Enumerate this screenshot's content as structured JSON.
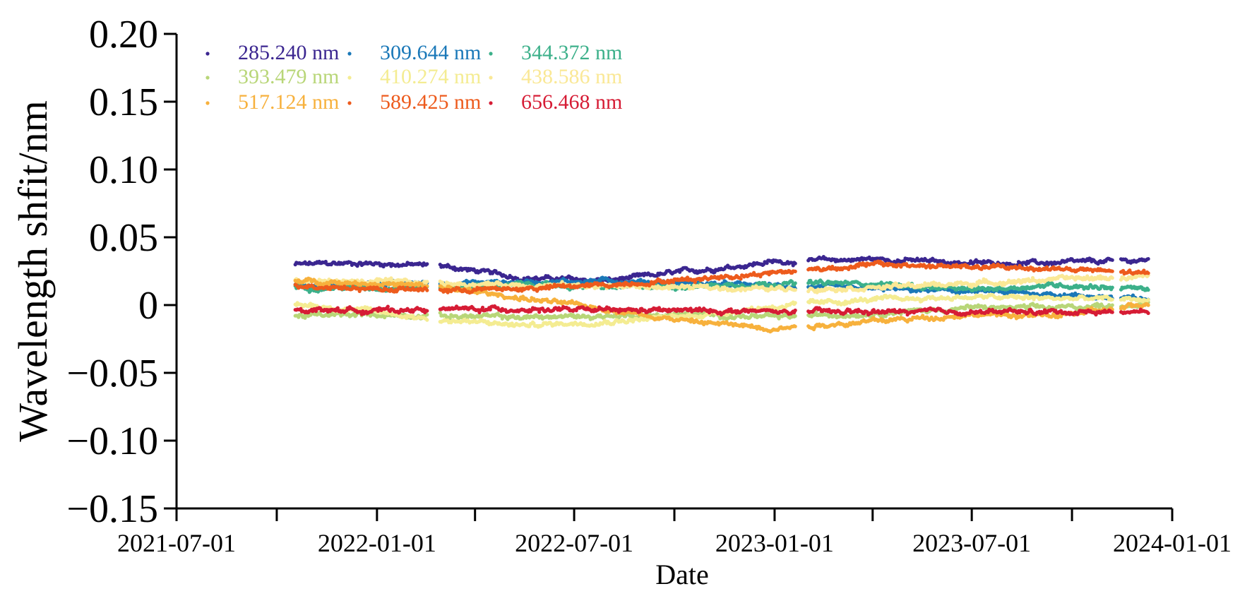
{
  "chart_data": {
    "type": "scatter",
    "xlabel": "Date",
    "ylabel": "Wavelength shfit/nm",
    "xlim": [
      "2021-07-01",
      "2024-01-01"
    ],
    "ylim": [
      -0.15,
      0.2
    ],
    "x_tick_labels": [
      "2021-07-01",
      "2022-01-01",
      "2022-07-01",
      "2023-01-01",
      "2023-07-01",
      "2024-01-01"
    ],
    "y_tick_labels": [
      "0.20",
      "0.15",
      "0.10",
      "0.05",
      "0",
      "−0.05",
      "−0.10",
      "−0.15"
    ],
    "legend_position": "top-left",
    "legend_columns": 3,
    "grid": false,
    "data_gaps": [
      [
        "2022-02-17",
        "2022-02-27"
      ],
      [
        "2023-01-21",
        "2023-01-31"
      ],
      [
        "2023-11-08",
        "2023-11-14"
      ]
    ],
    "series": [
      {
        "name": "285.240 nm",
        "color": "#3b2690",
        "x": [
          "2021-10-18",
          "2021-12-15",
          "2022-03-01",
          "2022-05-15",
          "2022-08-01",
          "2022-10-15",
          "2023-01-01",
          "2023-04-01",
          "2023-07-01",
          "2023-09-15",
          "2023-12-10"
        ],
        "y": [
          0.03,
          0.031,
          0.029,
          0.02,
          0.018,
          0.025,
          0.032,
          0.034,
          0.031,
          0.031,
          0.033
        ]
      },
      {
        "name": "309.644 nm",
        "color": "#1a78b8",
        "x": [
          "2021-10-18",
          "2022-01-01",
          "2022-03-01",
          "2022-05-15",
          "2022-08-01",
          "2022-10-15",
          "2023-01-01",
          "2023-04-01",
          "2023-07-01",
          "2023-09-15",
          "2023-12-10"
        ],
        "y": [
          0.015,
          0.016,
          0.016,
          0.017,
          0.018,
          0.016,
          0.014,
          0.012,
          0.01,
          0.008,
          0.004
        ]
      },
      {
        "name": "344.372 nm",
        "color": "#3cb08a",
        "x": [
          "2021-10-18",
          "2022-01-01",
          "2022-03-01",
          "2022-05-15",
          "2022-08-01",
          "2022-10-15",
          "2023-01-01",
          "2023-04-01",
          "2023-07-01",
          "2023-09-15",
          "2023-12-10"
        ],
        "y": [
          0.013,
          0.013,
          0.013,
          0.015,
          0.013,
          0.014,
          0.016,
          0.016,
          0.011,
          0.015,
          0.012
        ]
      },
      {
        "name": "393.479 nm",
        "color": "#b8d678",
        "x": [
          "2021-10-18",
          "2022-01-01",
          "2022-03-01",
          "2022-05-15",
          "2022-08-01",
          "2022-10-15",
          "2023-01-01",
          "2023-04-01",
          "2023-07-01",
          "2023-09-15",
          "2023-12-10"
        ],
        "y": [
          -0.008,
          -0.007,
          -0.008,
          -0.009,
          -0.008,
          -0.007,
          -0.009,
          -0.006,
          -0.002,
          -0.002,
          0.001
        ]
      },
      {
        "name": "410.274 nm",
        "color": "#f4ec92",
        "x": [
          "2021-10-18",
          "2022-01-01",
          "2022-03-01",
          "2022-05-15",
          "2022-08-01",
          "2022-10-15",
          "2023-01-01",
          "2023-04-01",
          "2023-07-01",
          "2023-09-15",
          "2023-12-10"
        ],
        "y": [
          0.001,
          -0.005,
          -0.011,
          -0.015,
          -0.012,
          -0.008,
          -0.001,
          0.004,
          0.006,
          0.005,
          0.004
        ]
      },
      {
        "name": "438.586 nm",
        "color": "#fae896",
        "x": [
          "2021-10-18",
          "2022-01-01",
          "2022-03-01",
          "2022-05-15",
          "2022-08-01",
          "2022-10-15",
          "2023-01-01",
          "2023-04-01",
          "2023-07-01",
          "2023-09-15",
          "2023-12-10"
        ],
        "y": [
          0.018,
          0.017,
          0.016,
          0.015,
          0.014,
          0.013,
          0.012,
          0.013,
          0.016,
          0.019,
          0.021
        ]
      },
      {
        "name": "517.124 nm",
        "color": "#f7b13d",
        "x": [
          "2021-10-18",
          "2022-01-01",
          "2022-03-01",
          "2022-05-15",
          "2022-08-01",
          "2022-10-15",
          "2023-01-01",
          "2023-04-01",
          "2023-07-01",
          "2023-09-15",
          "2023-12-10"
        ],
        "y": [
          0.018,
          0.016,
          0.013,
          0.005,
          -0.003,
          -0.012,
          -0.017,
          -0.012,
          -0.007,
          -0.008,
          0.0
        ]
      },
      {
        "name": "589.425 nm",
        "color": "#ed5b1d",
        "x": [
          "2021-10-18",
          "2022-01-01",
          "2022-03-01",
          "2022-05-15",
          "2022-08-01",
          "2022-10-15",
          "2023-01-01",
          "2023-04-01",
          "2023-07-01",
          "2023-09-15",
          "2023-12-10"
        ],
        "y": [
          0.015,
          0.012,
          0.011,
          0.012,
          0.015,
          0.019,
          0.024,
          0.03,
          0.028,
          0.027,
          0.023
        ]
      },
      {
        "name": "656.468 nm",
        "color": "#d61c35",
        "x": [
          "2021-10-18",
          "2022-01-01",
          "2022-03-01",
          "2022-05-15",
          "2022-08-01",
          "2022-10-15",
          "2023-01-01",
          "2023-04-01",
          "2023-07-01",
          "2023-09-15",
          "2023-12-10"
        ],
        "y": [
          -0.003,
          -0.004,
          -0.003,
          -0.003,
          -0.004,
          -0.004,
          -0.005,
          -0.005,
          -0.005,
          -0.005,
          -0.005
        ]
      }
    ]
  }
}
